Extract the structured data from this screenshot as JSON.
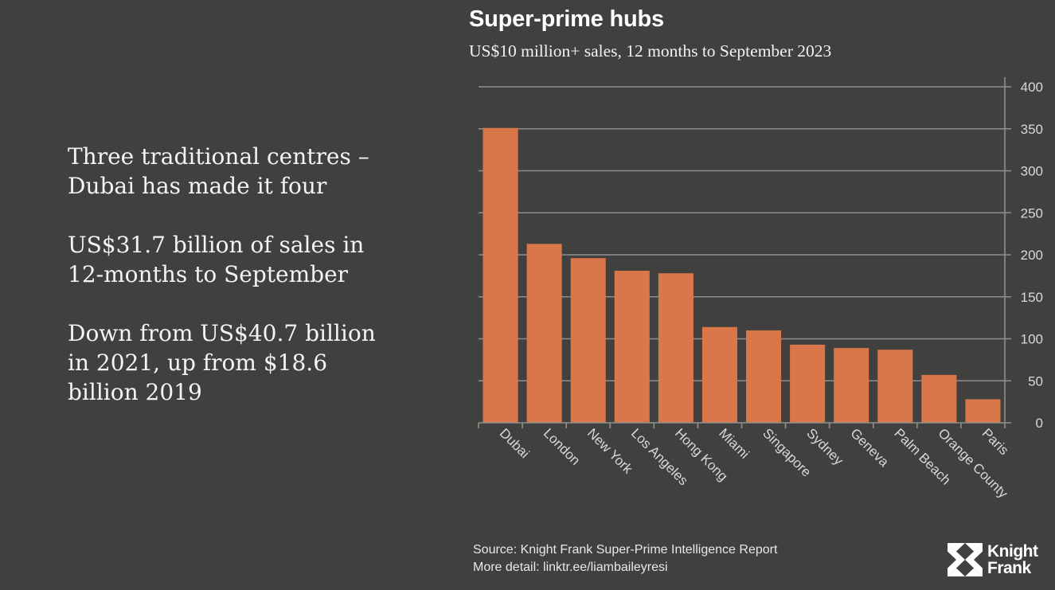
{
  "slide": {
    "bullets": [
      {
        "lines": [
          "Three traditional centres –",
          "Dubai has made it four"
        ]
      },
      {
        "lines": [
          "US$31.7 billion of sales in",
          "12-months to September"
        ]
      },
      {
        "lines": [
          "Down from US$40.7 billion",
          "in 2021, up from $18.6",
          "billion 2019"
        ]
      }
    ],
    "footer": {
      "source": "Source: Knight Frank Super-Prime Intelligence Report",
      "more": "More detail: linktr.ee/liambaileyresi"
    },
    "logo": {
      "line1": "Knight",
      "line2": "Frank"
    }
  },
  "colors": {
    "background": "#40413e",
    "bar": "#d9774b",
    "grid": "#8e8f8c",
    "axis_text": "#d8d8d6"
  },
  "chart_data": {
    "type": "bar",
    "title": "Super-prime hubs",
    "subtitle": "US$10 million+ sales, 12 months to September 2023",
    "xlabel": "",
    "ylabel": "",
    "categories": [
      "Dubai",
      "London",
      "New York",
      "Los Angeles",
      "Hong Kong",
      "Miami",
      "Singapore",
      "Sydney",
      "Geneva",
      "Palm Beach",
      "Orange County",
      "Paris"
    ],
    "values": [
      351,
      213,
      196,
      181,
      178,
      114,
      110,
      93,
      89,
      87,
      57,
      28
    ],
    "ylim": [
      0,
      400
    ],
    "yticks": [
      0,
      50,
      100,
      150,
      200,
      250,
      300,
      350,
      400
    ],
    "y_axis_side": "right",
    "grid": true,
    "legend": "none"
  }
}
